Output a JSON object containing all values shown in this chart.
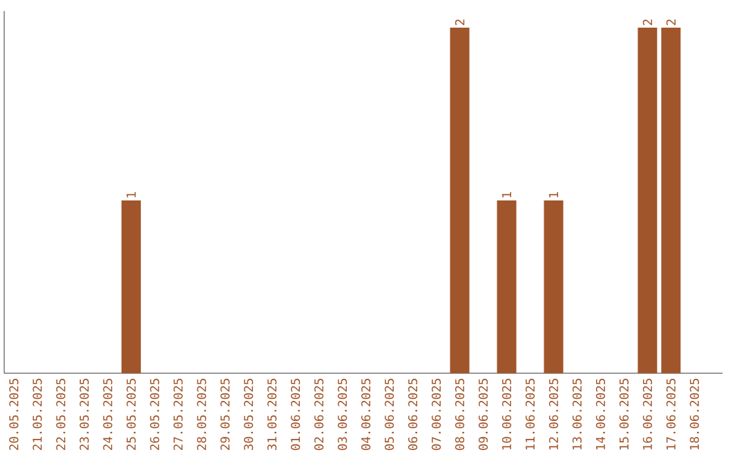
{
  "chart_data": {
    "type": "bar",
    "categories": [
      "20.05.2025",
      "21.05.2025",
      "22.05.2025",
      "23.05.2025",
      "24.05.2025",
      "25.05.2025",
      "26.05.2025",
      "27.05.2025",
      "28.05.2025",
      "29.05.2025",
      "30.05.2025",
      "31.05.2025",
      "01.06.2025",
      "02.06.2025",
      "03.06.2025",
      "04.06.2025",
      "05.06.2025",
      "06.06.2025",
      "07.06.2025",
      "08.06.2025",
      "09.06.2025",
      "10.06.2025",
      "11.06.2025",
      "12.06.2025",
      "13.06.2025",
      "14.06.2025",
      "15.06.2025",
      "16.06.2025",
      "17.06.2025",
      "18.06.2025"
    ],
    "values": [
      0,
      0,
      0,
      0,
      0,
      1,
      0,
      0,
      0,
      0,
      0,
      0,
      0,
      0,
      0,
      0,
      0,
      0,
      0,
      2,
      0,
      1,
      0,
      1,
      0,
      0,
      0,
      2,
      2,
      0
    ],
    "value_labels": [
      null,
      null,
      null,
      null,
      null,
      "1",
      null,
      null,
      null,
      null,
      null,
      null,
      null,
      null,
      null,
      null,
      null,
      null,
      null,
      "2",
      null,
      "1",
      null,
      "1",
      null,
      null,
      null,
      "2",
      "2",
      null
    ],
    "color": "#a0552a",
    "tick_labels": "x",
    "grid": false
  }
}
